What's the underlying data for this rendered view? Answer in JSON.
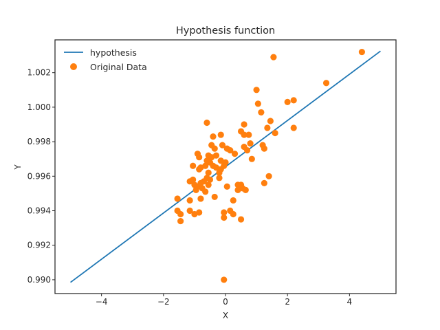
{
  "chart_data": {
    "type": "scatter",
    "title": "Hypothesis function",
    "xlabel": "X",
    "ylabel": "Y",
    "xlim": [
      -5.5,
      5.5
    ],
    "ylim": [
      0.9892,
      1.0039
    ],
    "x_ticks": [
      -4,
      -2,
      0,
      2,
      4
    ],
    "x_tick_labels": [
      "−4",
      "−2",
      "0",
      "2",
      "4"
    ],
    "y_ticks": [
      0.99,
      0.992,
      0.994,
      0.996,
      0.998,
      1.0,
      1.002
    ],
    "y_tick_labels": [
      "0.990",
      "0.992",
      "0.994",
      "0.996",
      "0.998",
      "1.000",
      "1.002"
    ],
    "grid": false,
    "legend_position": "top-left",
    "series": [
      {
        "name": "hypothesis",
        "kind": "line",
        "color": "#1f77b4",
        "x": [
          -5.0,
          5.0
        ],
        "y": [
          0.98985,
          1.00325
        ]
      },
      {
        "name": "Original Data",
        "kind": "scatter",
        "color": "#ff7f0e",
        "points": [
          [
            4.4,
            1.0032
          ],
          [
            1.55,
            1.0029
          ],
          [
            3.25,
            1.0014
          ],
          [
            1.0,
            1.001
          ],
          [
            1.05,
            1.0002
          ],
          [
            2.0,
            1.0003
          ],
          [
            2.2,
            1.0004
          ],
          [
            1.15,
            0.9997
          ],
          [
            1.45,
            0.9992
          ],
          [
            0.6,
            0.999
          ],
          [
            2.2,
            0.9988
          ],
          [
            1.35,
            0.9988
          ],
          [
            1.6,
            0.9985
          ],
          [
            -0.6,
            0.9991
          ],
          [
            0.5,
            0.9986
          ],
          [
            0.6,
            0.9984
          ],
          [
            -0.4,
            0.9983
          ],
          [
            -0.15,
            0.9984
          ],
          [
            0.75,
            0.9984
          ],
          [
            0.8,
            0.9979
          ],
          [
            0.6,
            0.9977
          ],
          [
            1.2,
            0.9978
          ],
          [
            1.25,
            0.9976
          ],
          [
            0.7,
            0.9975
          ],
          [
            0.85,
            0.997
          ],
          [
            -0.45,
            0.9978
          ],
          [
            -0.35,
            0.9976
          ],
          [
            -0.1,
            0.9978
          ],
          [
            0.05,
            0.9976
          ],
          [
            0.15,
            0.9975
          ],
          [
            0.3,
            0.9973
          ],
          [
            -0.9,
            0.9973
          ],
          [
            -0.85,
            0.9971
          ],
          [
            -0.55,
            0.9972
          ],
          [
            -0.45,
            0.9971
          ],
          [
            -0.3,
            0.9972
          ],
          [
            -0.6,
            0.9969
          ],
          [
            -0.5,
            0.9968
          ],
          [
            -0.15,
            0.9969
          ],
          [
            0.0,
            0.9968
          ],
          [
            -0.8,
            0.9965
          ],
          [
            -1.05,
            0.9966
          ],
          [
            -0.65,
            0.9966
          ],
          [
            -0.4,
            0.9966
          ],
          [
            -0.3,
            0.9965
          ],
          [
            -0.15,
            0.9964
          ],
          [
            -0.05,
            0.9966
          ],
          [
            -0.85,
            0.9964
          ],
          [
            -0.55,
            0.9962
          ],
          [
            -0.2,
            0.9962
          ],
          [
            -0.6,
            0.9959
          ],
          [
            -0.5,
            0.9958
          ],
          [
            -0.7,
            0.9957
          ],
          [
            -0.2,
            0.9959
          ],
          [
            -1.15,
            0.9957
          ],
          [
            -1.05,
            0.9958
          ],
          [
            -1.0,
            0.9955
          ],
          [
            -0.9,
            0.9954
          ],
          [
            -0.8,
            0.9956
          ],
          [
            -0.55,
            0.9955
          ],
          [
            0.05,
            0.9954
          ],
          [
            0.4,
            0.9955
          ],
          [
            0.5,
            0.9955
          ],
          [
            1.4,
            0.996
          ],
          [
            1.25,
            0.9956
          ],
          [
            -0.75,
            0.9953
          ],
          [
            -0.95,
            0.9952
          ],
          [
            -0.65,
            0.9951
          ],
          [
            0.4,
            0.9952
          ],
          [
            0.55,
            0.9953
          ],
          [
            0.65,
            0.9952
          ],
          [
            -1.55,
            0.9947
          ],
          [
            -0.8,
            0.9947
          ],
          [
            -0.35,
            0.9948
          ],
          [
            0.25,
            0.9946
          ],
          [
            -1.15,
            0.9946
          ],
          [
            -1.55,
            0.994
          ],
          [
            -1.15,
            0.994
          ],
          [
            -1.0,
            0.9938
          ],
          [
            -0.85,
            0.9939
          ],
          [
            -0.05,
            0.9939
          ],
          [
            0.15,
            0.994
          ],
          [
            0.25,
            0.9938
          ],
          [
            -1.45,
            0.9938
          ],
          [
            -1.45,
            0.9934
          ],
          [
            -0.05,
            0.9936
          ],
          [
            0.5,
            0.9935
          ],
          [
            -0.05,
            0.99
          ]
        ]
      }
    ]
  }
}
